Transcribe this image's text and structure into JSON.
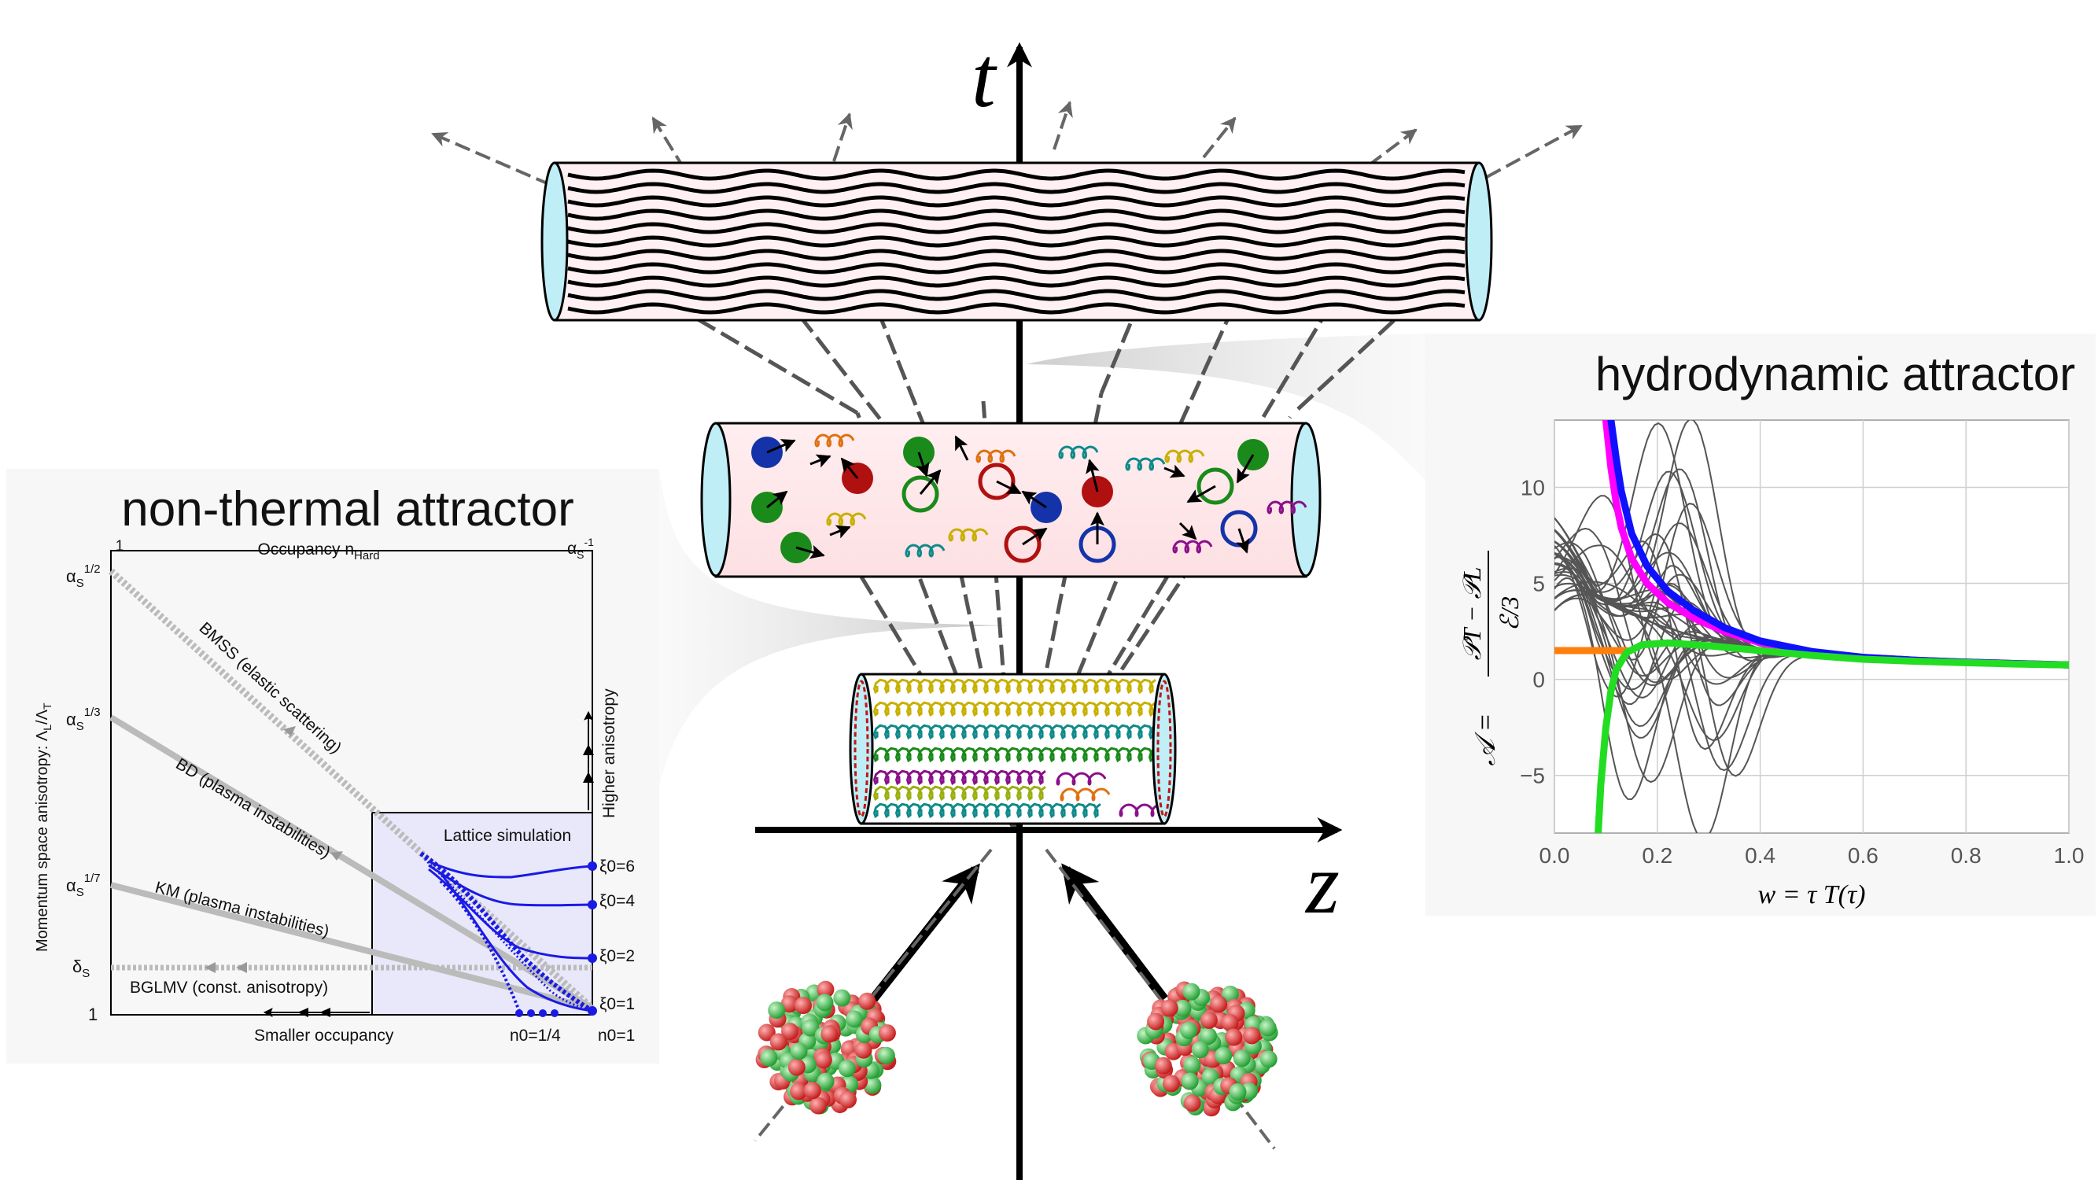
{
  "axes": {
    "time_label": "t",
    "space_label": "z"
  },
  "left_panel": {
    "title": "non-thermal attractor",
    "top_axis_label": "Occupancy n",
    "top_axis_sub": "Hard",
    "top_left": "1",
    "top_right_base": "α",
    "top_right_sub": "S",
    "top_right_sup": "-1",
    "y_axis_label": "Momentum space anisotropy: Λ",
    "y_axis_sub1": "L",
    "y_axis_mid": "/Λ",
    "y_axis_sub2": "T",
    "y_ticks": [
      {
        "base": "α",
        "sub": "S",
        "sup": "1/2"
      },
      {
        "base": "α",
        "sub": "S",
        "sup": "1/3"
      },
      {
        "base": "α",
        "sub": "S",
        "sup": "1/7"
      },
      {
        "base": "δ",
        "sub": "S",
        "sup": ""
      },
      {
        "base": "1",
        "sub": "",
        "sup": ""
      }
    ],
    "lines": [
      {
        "label": "BMSS (elastic scattering)"
      },
      {
        "label": "BD (plasma instabilities)"
      },
      {
        "label": "KM (plasma instabilities)"
      },
      {
        "label": "BGLMV (const. anisotropy)"
      }
    ],
    "right_label": "Higher anisotropy",
    "bottom_label": "Smaller occupancy",
    "lattice_label": "Lattice simulation",
    "xi_labels": [
      "ξ0=6",
      "ξ0=4",
      "ξ0=2",
      "ξ0=1"
    ],
    "n_labels": [
      "n0=1/4",
      "n0=1"
    ]
  },
  "right_panel": {
    "title": "hydrodynamic attractor",
    "y_prefix": "𝒜 =",
    "y_num": "𝒫T − 𝒫L",
    "y_den": "ℰ/3",
    "x_label": "w = τ T(τ)",
    "colors": {
      "magenta": "#ff00ff",
      "blue": "#1010ff",
      "orange": "#ff7f0e",
      "green": "#22dd22",
      "gray": "#555555"
    }
  },
  "chart_data": {
    "type": "line",
    "title": "",
    "xlabel": "w = τ T(τ)",
    "ylabel": "𝒜 = (𝒫T − 𝒫L)/(ℰ/3)",
    "xlim": [
      0,
      1
    ],
    "ylim": [
      -8,
      13.5
    ],
    "xticks": [
      "0.0",
      "0.2",
      "0.4",
      "0.6",
      "0.8",
      "1.0"
    ],
    "yticks": [
      "−5",
      "0",
      "5",
      "10"
    ],
    "ytick_values": [
      -5,
      0,
      5,
      10
    ],
    "xtick_values": [
      0,
      0.2,
      0.4,
      0.6,
      0.8,
      1.0
    ],
    "grid": true,
    "series": [
      {
        "color": "#ff00ff",
        "x": [
          0.1,
          0.11,
          0.12,
          0.13,
          0.15,
          0.18,
          0.22,
          0.27,
          0.33,
          0.4,
          0.5,
          0.6,
          0.7,
          0.8,
          0.9,
          1.0
        ],
        "y": [
          13.5,
          11.0,
          9.2,
          7.9,
          6.3,
          5.0,
          4.0,
          3.2,
          2.5,
          1.9,
          1.4,
          1.15,
          1.0,
          0.9,
          0.82,
          0.75
        ]
      },
      {
        "color": "#1010ff",
        "x": [
          0.11,
          0.12,
          0.13,
          0.15,
          0.18,
          0.22,
          0.27,
          0.33,
          0.4,
          0.5,
          0.6,
          0.7,
          0.8,
          0.9,
          1.0
        ],
        "y": [
          13.5,
          11.5,
          9.8,
          7.6,
          5.9,
          4.6,
          3.6,
          2.7,
          2.0,
          1.45,
          1.15,
          1.0,
          0.9,
          0.82,
          0.75
        ]
      },
      {
        "color": "#ff7f0e",
        "x": [
          0.0,
          0.05,
          0.1,
          0.14
        ],
        "y": [
          1.5,
          1.5,
          1.5,
          1.5
        ]
      },
      {
        "color": "#22dd22",
        "x": [
          0.085,
          0.09,
          0.1,
          0.11,
          0.12,
          0.14,
          0.17,
          0.22,
          0.3,
          0.4,
          0.5,
          0.6,
          0.7,
          0.8,
          0.9,
          1.0
        ],
        "y": [
          -8.0,
          -5.5,
          -2.5,
          -0.6,
          0.5,
          1.4,
          1.8,
          1.9,
          1.75,
          1.5,
          1.25,
          1.05,
          0.95,
          0.87,
          0.8,
          0.75
        ]
      }
    ]
  }
}
